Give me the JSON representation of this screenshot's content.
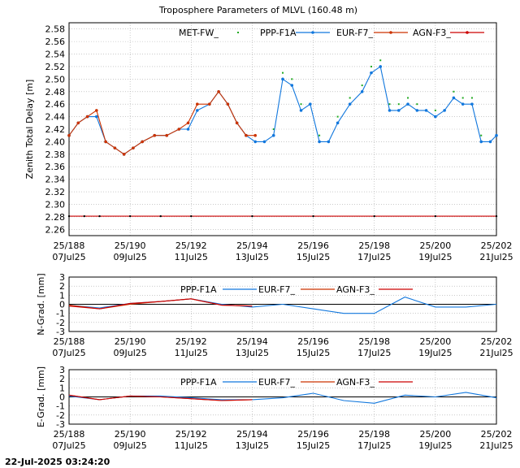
{
  "title": "Troposphere Parameters of MLVL (160.48 m)",
  "timestamp": "22-Jul-2025 03:24:20",
  "colors": {
    "met": "#22aa22",
    "ppp": "#1177dd",
    "eur": "#cc3300",
    "agn": "#cc0000"
  },
  "x_ticks": [
    {
      "day": 188,
      "top": "25/188",
      "bottom": "07Jul25"
    },
    {
      "day": 190,
      "top": "25/190",
      "bottom": "09Jul25"
    },
    {
      "day": 192,
      "top": "25/192",
      "bottom": "11Jul25"
    },
    {
      "day": 194,
      "top": "25/194",
      "bottom": "13Jul25"
    },
    {
      "day": 196,
      "top": "25/196",
      "bottom": "15Jul25"
    },
    {
      "day": 198,
      "top": "25/198",
      "bottom": "17Jul25"
    },
    {
      "day": 200,
      "top": "25/200",
      "bottom": "19Jul25"
    },
    {
      "day": 202,
      "top": "25/202",
      "bottom": "21Jul25"
    }
  ],
  "chart_data": [
    {
      "type": "line",
      "ylabel": "Zenith Total Delay [m]",
      "xlim": [
        188,
        202
      ],
      "ylim": [
        2.25,
        2.59
      ],
      "y_ticks": [
        "2.26",
        "2.28",
        "2.30",
        "2.32",
        "2.34",
        "2.36",
        "2.38",
        "2.40",
        "2.42",
        "2.44",
        "2.46",
        "2.48",
        "2.50",
        "2.52",
        "2.54",
        "2.56",
        "2.58"
      ],
      "grid": true,
      "legend": "top",
      "series": [
        {
          "name": "MET-FW_",
          "x": [
            188.0,
            188.3,
            188.6,
            188.9,
            189.2,
            189.5,
            189.8,
            190.1,
            190.4,
            190.8,
            191.2,
            191.6,
            191.9,
            192.2,
            192.6,
            192.9,
            193.2,
            193.5,
            193.8,
            194.1,
            194.4,
            194.7,
            195.0,
            195.3,
            195.6,
            195.9,
            196.2,
            196.5,
            196.8,
            197.2,
            197.6,
            197.9,
            198.2,
            198.5,
            198.8,
            199.1,
            199.4,
            199.7,
            200.0,
            200.3,
            200.6,
            200.9,
            201.2,
            201.5,
            201.8,
            202.0
          ],
          "values": [
            2.41,
            2.43,
            2.44,
            2.44,
            2.4,
            2.39,
            2.38,
            2.39,
            2.4,
            2.41,
            2.41,
            2.42,
            2.43,
            2.46,
            2.46,
            2.48,
            2.46,
            2.43,
            2.41,
            2.41,
            2.4,
            2.42,
            2.51,
            2.5,
            2.46,
            2.46,
            2.41,
            2.4,
            2.44,
            2.47,
            2.49,
            2.52,
            2.53,
            2.46,
            2.46,
            2.47,
            2.46,
            2.45,
            2.45,
            2.45,
            2.48,
            2.47,
            2.47,
            2.41,
            2.4,
            2.41
          ]
        },
        {
          "name": "PPP-F1A",
          "x": [
            188.0,
            188.3,
            188.6,
            188.9,
            189.2,
            189.5,
            189.8,
            190.1,
            190.4,
            190.8,
            191.2,
            191.6,
            191.9,
            192.2,
            192.6,
            192.9,
            193.2,
            193.5,
            193.8,
            194.1,
            194.4,
            194.7,
            195.0,
            195.3,
            195.6,
            195.9,
            196.2,
            196.5,
            196.8,
            197.2,
            197.6,
            197.9,
            198.2,
            198.5,
            198.8,
            199.1,
            199.4,
            199.7,
            200.0,
            200.3,
            200.6,
            200.9,
            201.2,
            201.5,
            201.8,
            202.0
          ],
          "values": [
            2.41,
            2.43,
            2.44,
            2.44,
            2.4,
            2.39,
            2.38,
            2.39,
            2.4,
            2.41,
            2.41,
            2.42,
            2.42,
            2.45,
            2.46,
            2.48,
            2.46,
            2.43,
            2.41,
            2.4,
            2.4,
            2.41,
            2.5,
            2.49,
            2.45,
            2.46,
            2.4,
            2.4,
            2.43,
            2.46,
            2.48,
            2.51,
            2.52,
            2.45,
            2.45,
            2.46,
            2.45,
            2.45,
            2.44,
            2.45,
            2.47,
            2.46,
            2.46,
            2.4,
            2.4,
            2.41
          ]
        },
        {
          "name": "EUR-F7_",
          "x": [
            188.0,
            188.3,
            188.6,
            188.9,
            189.2,
            189.5,
            189.8,
            190.1,
            190.4,
            190.8,
            191.2,
            191.6,
            191.9,
            192.2,
            192.6,
            192.9,
            193.2,
            193.5,
            193.8,
            194.1
          ],
          "values": [
            2.41,
            2.43,
            2.44,
            2.45,
            2.4,
            2.39,
            2.38,
            2.39,
            2.4,
            2.41,
            2.41,
            2.42,
            2.43,
            2.46,
            2.46,
            2.48,
            2.46,
            2.43,
            2.41,
            2.41
          ]
        },
        {
          "name": "AGN-F3_",
          "x": [
            188.0,
            188.5,
            189.0,
            190.0,
            191.0,
            192.0,
            194.0,
            196.0,
            198.0,
            200.0,
            202.0
          ],
          "values": [
            2.281,
            2.281,
            2.281,
            2.281,
            2.281,
            2.281,
            2.281,
            2.281,
            2.281,
            2.281,
            2.281
          ]
        }
      ]
    },
    {
      "type": "line",
      "ylabel": "N-Grad. [mm]",
      "xlim": [
        188,
        202
      ],
      "ylim": [
        -3,
        3
      ],
      "y_ticks": [
        "3",
        "2",
        "1",
        "0",
        "-1",
        "-2",
        "-3"
      ],
      "grid": true,
      "legend": "top",
      "series": [
        {
          "name": "PPP-F1A",
          "x": [
            188,
            189,
            190,
            191,
            192,
            193,
            194,
            195,
            196,
            197,
            198,
            199,
            200,
            201,
            202
          ],
          "values": [
            -0.1,
            -0.4,
            0.1,
            0.3,
            0.6,
            0.0,
            -0.3,
            0.0,
            -0.5,
            -1.0,
            -1.0,
            0.8,
            -0.3,
            -0.3,
            0.0
          ]
        },
        {
          "name": "EUR-F7_",
          "x": [
            188,
            189,
            190,
            191,
            192,
            193,
            194
          ],
          "values": [
            -0.1,
            -0.5,
            0.0,
            0.3,
            0.6,
            -0.1,
            -0.2
          ]
        },
        {
          "name": "AGN-F3_",
          "x": [
            188,
            189,
            190,
            191,
            192,
            193,
            194
          ],
          "values": [
            -0.2,
            -0.5,
            0.1,
            0.3,
            0.6,
            -0.1,
            -0.2
          ]
        }
      ]
    },
    {
      "type": "line",
      "ylabel": "E-Grad. [mm]",
      "xlim": [
        188,
        202
      ],
      "ylim": [
        -3,
        3
      ],
      "y_ticks": [
        "3",
        "2",
        "1",
        "0",
        "-1",
        "-2",
        "-3"
      ],
      "grid": true,
      "legend": "top",
      "series": [
        {
          "name": "PPP-F1A",
          "x": [
            188,
            189,
            190,
            191,
            192,
            193,
            194,
            195,
            196,
            197,
            198,
            199,
            200,
            201,
            202
          ],
          "values": [
            0.1,
            -0.3,
            0.1,
            0.1,
            -0.1,
            -0.3,
            -0.3,
            -0.1,
            0.4,
            -0.4,
            -0.7,
            0.2,
            0.0,
            0.5,
            -0.1
          ]
        },
        {
          "name": "EUR-F7_",
          "x": [
            188,
            189,
            190,
            191,
            192,
            193,
            194
          ],
          "values": [
            0.2,
            -0.3,
            0.1,
            0.0,
            -0.2,
            -0.4,
            -0.3
          ]
        },
        {
          "name": "AGN-F3_",
          "x": [
            188,
            189,
            190,
            191,
            192,
            193,
            194
          ],
          "values": [
            0.2,
            -0.3,
            0.1,
            0.0,
            -0.2,
            -0.4,
            -0.3
          ]
        }
      ]
    }
  ]
}
